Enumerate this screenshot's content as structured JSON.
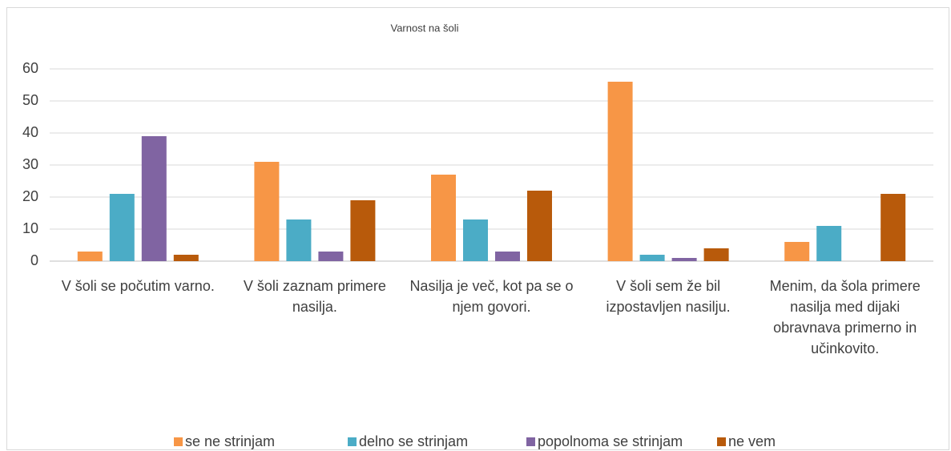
{
  "chart_data": {
    "type": "bar",
    "title": "Varnost na šoli",
    "categories": [
      "V šoli se počutim varno.",
      "V šoli zaznam primere nasilja.",
      "Nasilja je več, kot pa se o njem govori.",
      "V šoli sem že bil izpostavljen nasilju.",
      "Menim, da šola primere nasilja med dijaki obravnava primerno in učinkovito."
    ],
    "series": [
      {
        "name": "se ne strinjam",
        "color": "#f79646",
        "values": [
          3,
          31,
          27,
          56,
          6
        ]
      },
      {
        "name": "delno se strinjam",
        "color": "#4bacc6",
        "values": [
          21,
          13,
          13,
          2,
          11
        ]
      },
      {
        "name": "popolnoma se strinjam",
        "color": "#8064a2",
        "values": [
          39,
          3,
          3,
          1,
          0
        ]
      },
      {
        "name": "ne vem",
        "color": "#b85a0b",
        "values": [
          2,
          19,
          22,
          4,
          21
        ]
      }
    ],
    "ylim": [
      0,
      60
    ],
    "yticks": [
      0,
      10,
      20,
      30,
      40,
      50,
      60
    ],
    "grid": true,
    "legend": "bottom"
  }
}
